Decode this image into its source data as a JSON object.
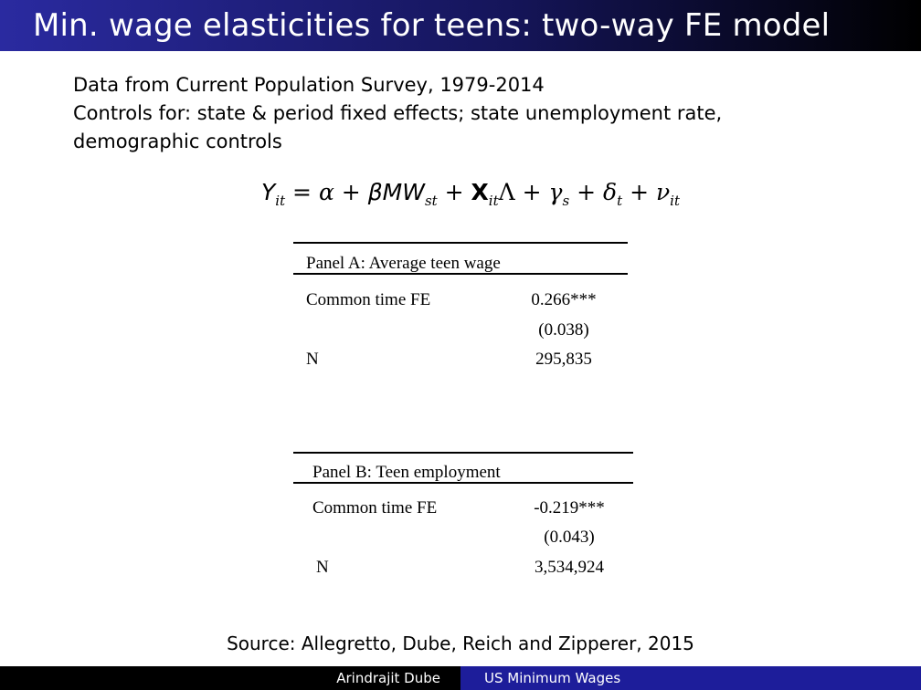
{
  "slide": {
    "title": "Min. wage elasticities for teens: two-way FE model",
    "intro_lines": [
      "Data from Current Population Survey, 1979-2014",
      "Controls for: state & period fixed effects; state unemployment rate,",
      "demographic controls"
    ]
  },
  "equation": {
    "lhs": "Y",
    "lhs_sub": "it",
    "eq": " = ",
    "alpha": "α",
    "plus1": " + ",
    "beta_mw": "βMW",
    "beta_mw_sub": "st",
    "plus2": " + ",
    "x": "X",
    "x_sub": "it",
    "lambda": "Λ",
    "plus3": " + ",
    "gamma": "γ",
    "gamma_sub": "s",
    "plus4": " + ",
    "delta": "δ",
    "delta_sub": "t",
    "plus5": " + ",
    "nu": "ν",
    "nu_sub": "it"
  },
  "panel_a": {
    "header": "Panel A: Average teen wage",
    "row1_label": "Common time FE",
    "row1_value": "0.266***",
    "row1_se": "(0.038)",
    "row2_label": "N",
    "row2_value": "295,835"
  },
  "panel_b": {
    "header": "Panel B: Teen employment",
    "row1_label": "Common time FE",
    "row1_value": "-0.219***",
    "row1_se": "(0.043)",
    "row2_label": "N",
    "row2_value": "3,534,924"
  },
  "source": "Source: Allegretto, Dube, Reich and Zipperer, 2015",
  "footer": {
    "author": "Arindrajit Dube",
    "talk_title": "US Minimum Wages"
  }
}
